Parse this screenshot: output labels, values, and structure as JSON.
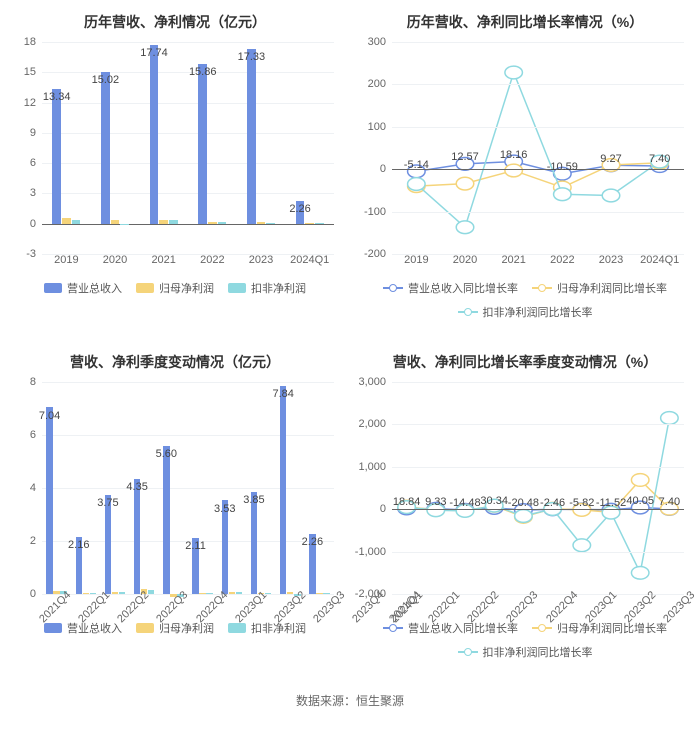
{
  "colors": {
    "series1": "#6e8fe0",
    "series2": "#f5d47a",
    "series3": "#8fd9e0",
    "grid": "#eef1f4",
    "axis": "#666666",
    "text": "#333333",
    "label": "#555555"
  },
  "footer": "数据来源：恒生聚源",
  "chart1": {
    "title": "历年营收、净利情况（亿元）",
    "type": "bar",
    "ymin": -3,
    "ymax": 18,
    "ytick_step": 3,
    "categories": [
      "2019",
      "2020",
      "2021",
      "2022",
      "2023",
      "2024Q1"
    ],
    "series": [
      {
        "name": "营业总收入",
        "color": "#6e8fe0",
        "values": [
          13.34,
          15.02,
          17.74,
          15.86,
          17.33,
          2.26
        ],
        "show_label": true
      },
      {
        "name": "归母净利润",
        "color": "#f5d47a",
        "values": [
          0.55,
          0.36,
          0.35,
          0.2,
          0.22,
          0.04
        ],
        "show_label": false
      },
      {
        "name": "扣非净利润",
        "color": "#8fd9e0",
        "values": [
          0.41,
          -0.15,
          0.34,
          0.14,
          0.05,
          0.03
        ],
        "show_label": false
      }
    ],
    "labels": [
      "13.34",
      "15.02",
      "17.74",
      "15.86",
      "17.33",
      "2.26"
    ],
    "bar_width": 0.18
  },
  "chart2": {
    "title": "历年营收、净利同比增长率情况（%）",
    "type": "line",
    "ymin": -200,
    "ymax": 300,
    "ytick_step": 100,
    "categories": [
      "2019",
      "2020",
      "2021",
      "2022",
      "2023",
      "2024Q1"
    ],
    "series": [
      {
        "name": "营业总收入同比增长率",
        "color": "#6e8fe0",
        "values": [
          -5.14,
          12.57,
          18.16,
          -10.59,
          9.27,
          7.4
        ]
      },
      {
        "name": "归母净利润同比增长率",
        "color": "#f5d47a",
        "values": [
          -40,
          -34,
          -3,
          -43,
          10,
          15
        ]
      },
      {
        "name": "扣非净利润同比增长率",
        "color": "#8fd9e0",
        "values": [
          -35,
          -137,
          228,
          -59,
          -62,
          18
        ]
      }
    ],
    "labels": [
      "-5.14",
      "12.57",
      "18.16",
      "-10.59",
      "9.27",
      "7.40"
    ]
  },
  "chart3": {
    "title": "营收、净利季度变动情况（亿元）",
    "type": "bar",
    "ymin": 0,
    "ymax": 8,
    "ytick_step": 2,
    "categories": [
      "2021Q4",
      "2022Q1",
      "2022Q2",
      "2022Q3",
      "2022Q4",
      "2023Q1",
      "2023Q2",
      "2023Q3",
      "2023Q4",
      "2024Q1"
    ],
    "series": [
      {
        "name": "营业总收入",
        "color": "#6e8fe0",
        "values": [
          7.04,
          2.16,
          3.75,
          4.35,
          5.6,
          2.11,
          3.53,
          3.85,
          7.84,
          2.26
        ],
        "show_label": true
      },
      {
        "name": "归母净利润",
        "color": "#f5d47a",
        "values": [
          0.12,
          0.03,
          0.08,
          0.19,
          -0.1,
          0.03,
          0.07,
          0.05,
          0.07,
          0.04
        ],
        "show_label": false
      },
      {
        "name": "扣非净利润",
        "color": "#8fd9e0",
        "values": [
          0.1,
          0.02,
          0.07,
          0.15,
          -0.1,
          0.02,
          0.06,
          0.03,
          -0.06,
          0.03
        ],
        "show_label": false
      }
    ],
    "labels": [
      "7.04",
      "2.16",
      "3.75",
      "4.35",
      "5.60",
      "2.11",
      "3.53",
      "3.85",
      "7.84",
      "2.26"
    ],
    "bar_width": 0.22,
    "rotate_x": true
  },
  "chart4": {
    "title": "营收、净利同比增长率季度变动情况（%）",
    "type": "line",
    "ymin": -2000,
    "ymax": 3000,
    "ytick_step": 1000,
    "categories": [
      "2021Q4",
      "2022Q1",
      "2022Q2",
      "2022Q3",
      "2022Q4",
      "2023Q1",
      "2023Q2",
      "2023Q3",
      "2023Q4",
      "2024Q1"
    ],
    "series": [
      {
        "name": "营业总收入同比增长率",
        "color": "#6e8fe0",
        "values": [
          18.84,
          9.33,
          -14.48,
          30.34,
          -20.48,
          -2.46,
          -5.82,
          -11.52,
          40.05,
          7.4
        ]
      },
      {
        "name": "归母净利润同比增长率",
        "color": "#f5d47a",
        "values": [
          60,
          -20,
          -35,
          80,
          -180,
          10,
          -15,
          -75,
          690,
          12
        ]
      },
      {
        "name": "扣非净利润同比增长率",
        "color": "#8fd9e0",
        "values": [
          50,
          -25,
          -40,
          85,
          -160,
          5,
          -850,
          -80,
          -1500,
          2150
        ]
      }
    ],
    "labels": [
      "18.84",
      "9.33",
      "-14.48",
      "30.34",
      "-20.48",
      "-2.46",
      "-5.82",
      "-11.52",
      "40.05",
      "7.40"
    ],
    "rotate_x": true
  },
  "legend_bar": [
    "营业总收入",
    "归母净利润",
    "扣非净利润"
  ],
  "legend_line": [
    "营业总收入同比增长率",
    "归母净利润同比增长率",
    "扣非净利润同比增长率"
  ]
}
